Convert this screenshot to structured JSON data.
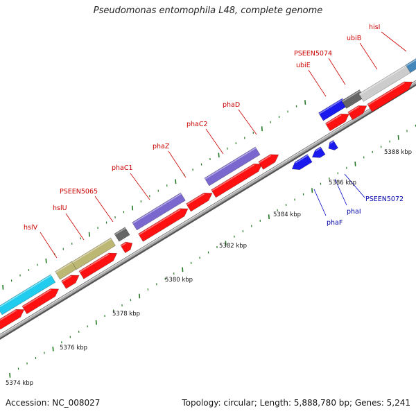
{
  "title": "Pseudomonas entomophila L48, complete genome",
  "footer": {
    "accession": "Accession: NC_008027",
    "summary": "Topology: circular; Length: 5,888,780 bp; Genes: 5,241"
  },
  "colors": {
    "backbone": "#999999",
    "red": "#ff1111",
    "blue": "#1a1aee",
    "olive": "#bdb774",
    "purple": "#7b68cf",
    "cyan": "#22ccee",
    "darkgray": "#666666",
    "lightgray": "#cccccc",
    "steelblue": "#4488bb",
    "tick": "#227722",
    "label_red": "#cc0000",
    "label_blue": "#0000aa"
  },
  "scale_labels": [
    "5374 kbp",
    "5376 kbp",
    "5378 kbp",
    "5380 kbp",
    "5382 kbp",
    "5384 kbp",
    "5386 kbp",
    "5388 kbp"
  ],
  "gene_labels": [
    {
      "text": "hslV",
      "color": "red"
    },
    {
      "text": "hslU",
      "color": "red"
    },
    {
      "text": "PSEEN5065",
      "color": "red"
    },
    {
      "text": "phaC1",
      "color": "red"
    },
    {
      "text": "phaZ",
      "color": "red"
    },
    {
      "text": "phaC2",
      "color": "red"
    },
    {
      "text": "phaD",
      "color": "red"
    },
    {
      "text": "ubiE",
      "color": "red"
    },
    {
      "text": "PSEEN5074",
      "color": "red"
    },
    {
      "text": "ubiB",
      "color": "red"
    },
    {
      "text": "hisI",
      "color": "red"
    },
    {
      "text": "phaF",
      "color": "blue"
    },
    {
      "text": "phaI",
      "color": "blue"
    },
    {
      "text": "PSEEN5072",
      "color": "blue"
    }
  ]
}
